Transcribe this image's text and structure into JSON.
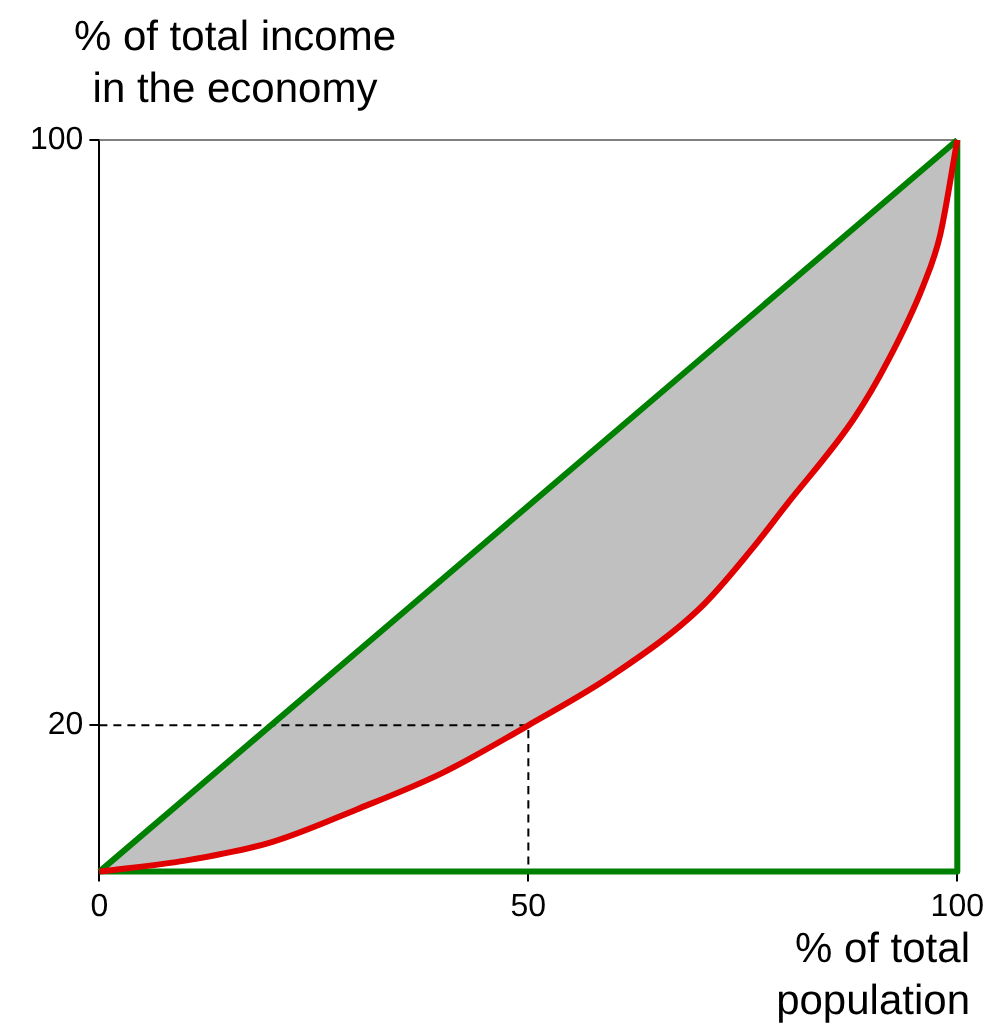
{
  "chart_data": {
    "type": "line",
    "ylabel": "% of total income in the economy",
    "xlabel": "% of total population",
    "xlim": [
      0,
      100
    ],
    "xticks": [
      0,
      50,
      100
    ],
    "ylim": [
      0,
      100
    ],
    "yticks": [
      20,
      100
    ],
    "grid": false,
    "legend": false,
    "marker": "none",
    "series": [
      {
        "color": "#e00000",
        "x": [
          0,
          10,
          20,
          30,
          40,
          50,
          60,
          70,
          76,
          80,
          88,
          92,
          96,
          98,
          100
        ],
        "values": [
          0,
          1.5,
          4,
          8.5,
          13.5,
          20,
          27,
          36,
          44,
          50,
          62,
          70,
          80,
          87,
          100
        ],
        "lower": [
          0,
          1.5,
          4,
          8.5,
          13.5,
          20,
          27,
          36,
          44,
          50,
          62,
          70,
          80,
          87,
          100
        ],
        "upper": [
          0,
          10,
          20,
          30,
          40,
          50,
          60,
          70,
          76,
          80,
          88,
          92,
          96,
          98,
          100
        ]
      },
      {
        "color": "#008000",
        "x": [
          0,
          100
        ],
        "values": [
          0,
          100
        ]
      },
      {
        "color": "#008000",
        "x": [
          0,
          100,
          100
        ],
        "values": [
          0,
          0,
          100
        ]
      },
      {
        "color": "#000000",
        "line_style": "dashed",
        "x": [
          0,
          50,
          50
        ],
        "values": [
          20,
          20,
          0
        ]
      }
    ]
  }
}
